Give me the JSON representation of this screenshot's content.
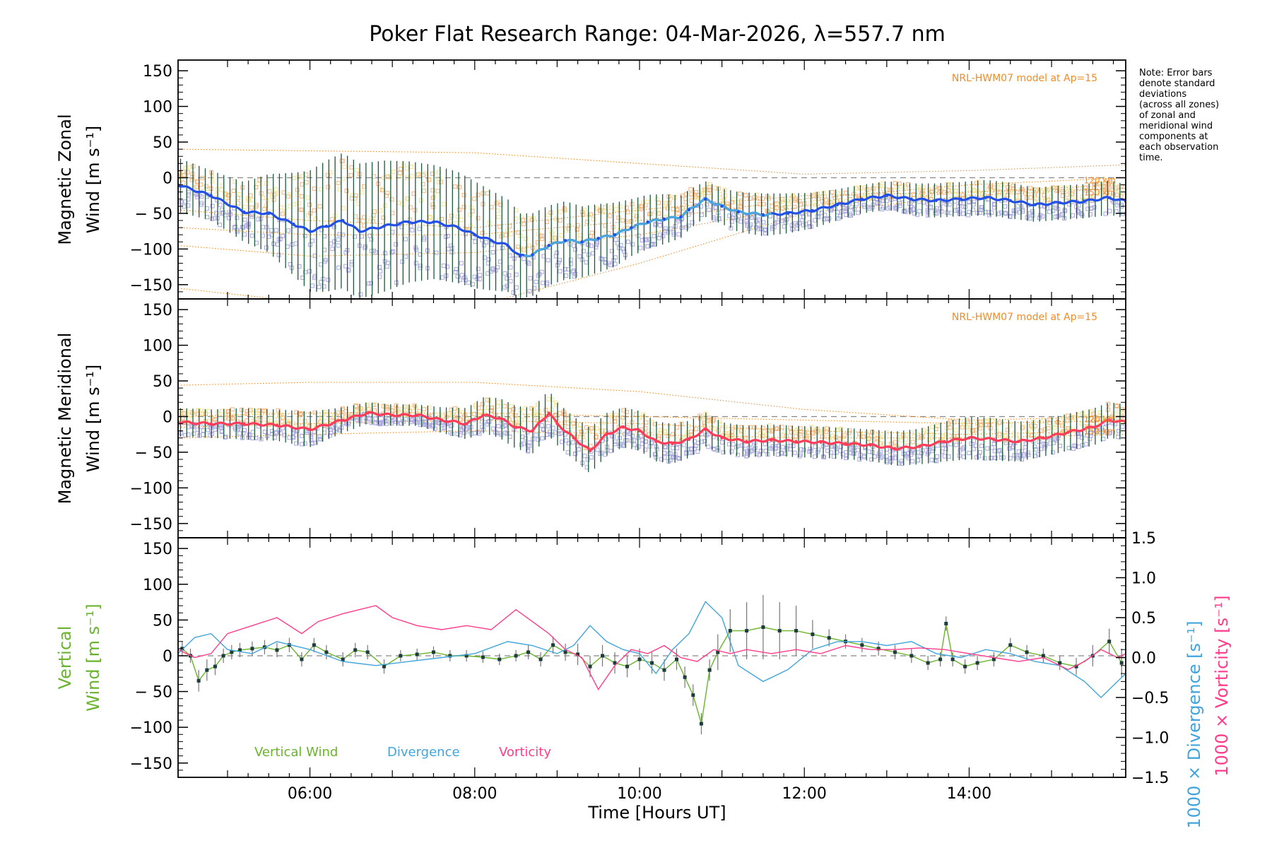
{
  "chart_data": {
    "type": "line",
    "title": "Poker Flat Research Range: 04-Mar-2026, λ=557.7 nm",
    "xlabel": "Time [Hours UT]",
    "xlim": [
      4.4,
      15.9
    ],
    "x_ticks": [
      6,
      8,
      10,
      12,
      14
    ],
    "x_tick_labels": [
      "06:00",
      "08:00",
      "10:00",
      "12:00",
      "14:00"
    ],
    "note": [
      "Note: Error bars",
      "denote standard",
      "deviations",
      "(across all zones)",
      "of zonal and",
      "meridional wind",
      "components at",
      "each observation",
      "time."
    ],
    "colors": {
      "zonal": "#2350e6",
      "zonal_light": "#4aa8dc",
      "meridional": "#ff3c5a",
      "vertical": "#6ab42c",
      "divergence": "#41a5dc",
      "vorticity": "#ff3c8c",
      "model": "#f08c28",
      "errbar": "#1d5a3c",
      "scatter_violet": "#aaa6e0",
      "scatter_yellow": "#f6e39a",
      "scatter_orange": "#f5b582"
    },
    "panels": [
      {
        "name": "zonal",
        "ylabel": [
          "Magnetic Zonal",
          "Wind [m s⁻¹]"
        ],
        "ylim": [
          -170,
          165
        ],
        "y_ticks": [
          150,
          100,
          50,
          0,
          -50,
          -100,
          -150
        ],
        "y_tick_labels": [
          "150",
          "100",
          "50",
          "0",
          "− 50",
          "−100",
          "−150"
        ],
        "model_label": "NRL-HWM07 model at Ap=15",
        "model_heights": [
          "120 km",
          "150 km"
        ],
        "mean_wind": {
          "name": "Mean zonal wind",
          "x": [
            4.4,
            4.8,
            5.2,
            5.5,
            5.8,
            6.0,
            6.2,
            6.4,
            6.6,
            6.9,
            7.2,
            7.5,
            7.8,
            8.0,
            8.2,
            8.4,
            8.55,
            8.7,
            8.9,
            9.1,
            9.3,
            9.5,
            9.7,
            9.9,
            10.1,
            10.3,
            10.5,
            10.6,
            10.8,
            11.0,
            11.2,
            11.5,
            11.8,
            12.1,
            12.4,
            12.7,
            13.0,
            13.3,
            13.6,
            13.9,
            14.2,
            14.5,
            14.8,
            15.1,
            15.4,
            15.7,
            15.9
          ],
          "y": [
            -10,
            -25,
            -48,
            -50,
            -65,
            -75,
            -68,
            -60,
            -75,
            -68,
            -62,
            -62,
            -70,
            -80,
            -88,
            -95,
            -110,
            -108,
            -95,
            -88,
            -90,
            -85,
            -80,
            -70,
            -62,
            -58,
            -55,
            -45,
            -30,
            -40,
            -48,
            -52,
            -50,
            -46,
            -38,
            -30,
            -25,
            -30,
            -32,
            -30,
            -28,
            -32,
            -38,
            -35,
            -33,
            -28,
            -33
          ]
        },
        "error_bar_half_width": [
          38,
          35,
          42,
          55,
          72,
          85,
          92,
          95,
          95,
          92,
          85,
          80,
          78,
          75,
          70,
          65,
          60,
          58,
          56,
          55,
          50,
          48,
          45,
          40,
          38,
          35,
          30,
          28,
          25,
          25,
          28,
          30,
          28,
          25,
          22,
          20,
          20,
          22,
          24,
          24,
          25,
          25,
          24,
          24,
          24,
          24,
          24
        ],
        "scatter": "zonal"
      },
      {
        "name": "meridional",
        "ylabel": [
          "Magnetic Meridional",
          "Wind [m s⁻¹]"
        ],
        "ylim": [
          -170,
          165
        ],
        "y_ticks": [
          150,
          100,
          50,
          0,
          -50,
          -100,
          -150
        ],
        "y_tick_labels": [
          "150",
          "100",
          "50",
          "0",
          "− 50",
          "−100",
          "−150"
        ],
        "model_label": "NRL-HWM07 model at Ap=15",
        "model_heights": [
          "120 km",
          "150 km"
        ],
        "mean_wind": {
          "name": "Mean meridional wind",
          "x": [
            4.4,
            4.8,
            5.2,
            5.6,
            6.0,
            6.4,
            6.7,
            7.0,
            7.3,
            7.6,
            7.9,
            8.1,
            8.3,
            8.5,
            8.7,
            8.9,
            9.0,
            9.2,
            9.4,
            9.6,
            9.8,
            10.0,
            10.2,
            10.4,
            10.6,
            10.8,
            11.0,
            11.3,
            11.6,
            11.9,
            12.2,
            12.5,
            12.8,
            13.1,
            13.4,
            13.7,
            14.0,
            14.3,
            14.6,
            14.9,
            15.2,
            15.5,
            15.7,
            15.9
          ],
          "y": [
            -8,
            -10,
            -10,
            -12,
            -18,
            -5,
            5,
            2,
            2,
            -5,
            -10,
            2,
            -2,
            -15,
            -20,
            5,
            -10,
            -30,
            -48,
            -25,
            -15,
            -20,
            -35,
            -38,
            -32,
            -18,
            -30,
            -35,
            -33,
            -35,
            -36,
            -38,
            -40,
            -45,
            -42,
            -35,
            -30,
            -32,
            -35,
            -30,
            -22,
            -15,
            -5,
            -8
          ]
        },
        "error_bar_half_width": [
          20,
          20,
          22,
          22,
          25,
          18,
          15,
          15,
          15,
          18,
          22,
          25,
          28,
          30,
          32,
          32,
          30,
          30,
          32,
          30,
          28,
          28,
          28,
          28,
          26,
          24,
          22,
          22,
          22,
          22,
          22,
          22,
          22,
          24,
          25,
          28,
          30,
          30,
          28,
          26,
          26,
          26,
          25,
          25
        ],
        "scatter": "meridional"
      },
      {
        "name": "vertical",
        "ylabel_left": [
          "Vertical",
          "Wind [m s⁻¹]"
        ],
        "ylabel_right_div": "1000 × Divergence [s⁻¹]",
        "ylabel_right_vort": "1000 × Vorticity [s⁻¹]",
        "ylim": [
          -170,
          165
        ],
        "y_ticks": [
          150,
          100,
          50,
          0,
          -50,
          -100,
          -150
        ],
        "y_tick_labels": [
          "150",
          "100",
          "50",
          "0",
          "− 50",
          "−100",
          "−150"
        ],
        "ylim_right": [
          -1.5,
          1.5
        ],
        "y_ticks_right": [
          1.5,
          1.0,
          0.5,
          0.0,
          -0.5,
          -1.0,
          -1.5
        ],
        "y_tick_labels_right": [
          "1.5",
          "1.0",
          "0.5",
          "0.0",
          "−0.5",
          "−1.0",
          "−1.5"
        ],
        "legend": [
          "Vertical Wind",
          "Divergence",
          "Vorticity"
        ],
        "series": [
          {
            "name": "Vertical Wind",
            "x": [
              4.45,
              4.55,
              4.65,
              4.75,
              4.85,
              4.95,
              5.05,
              5.15,
              5.3,
              5.45,
              5.6,
              5.75,
              5.9,
              6.05,
              6.2,
              6.4,
              6.55,
              6.7,
              6.9,
              7.1,
              7.3,
              7.5,
              7.7,
              7.9,
              8.1,
              8.3,
              8.5,
              8.65,
              8.8,
              8.95,
              9.1,
              9.25,
              9.4,
              9.55,
              9.7,
              9.85,
              10.0,
              10.15,
              10.3,
              10.45,
              10.55,
              10.65,
              10.75,
              10.85,
              10.95,
              11.1,
              11.3,
              11.5,
              11.7,
              11.9,
              12.1,
              12.3,
              12.5,
              12.7,
              12.9,
              13.1,
              13.3,
              13.5,
              13.65,
              13.72,
              13.8,
              13.95,
              14.1,
              14.3,
              14.5,
              14.7,
              14.9,
              15.1,
              15.3,
              15.5,
              15.7,
              15.85
            ],
            "y": [
              10,
              0,
              -35,
              -20,
              -15,
              0,
              5,
              8,
              10,
              12,
              8,
              15,
              -5,
              15,
              5,
              -5,
              8,
              5,
              -15,
              0,
              2,
              5,
              0,
              0,
              -2,
              -5,
              0,
              5,
              -5,
              15,
              5,
              2,
              -15,
              0,
              -10,
              -15,
              -5,
              -10,
              -20,
              -5,
              -30,
              -55,
              -95,
              -20,
              5,
              35,
              35,
              40,
              35,
              35,
              30,
              25,
              20,
              15,
              10,
              5,
              0,
              -10,
              -5,
              45,
              -5,
              -15,
              -10,
              -5,
              15,
              5,
              0,
              -10,
              -15,
              0,
              20,
              -10
            ],
            "errbar": [
              10,
              10,
              15,
              15,
              12,
              10,
              10,
              10,
              10,
              10,
              10,
              10,
              10,
              10,
              10,
              10,
              10,
              10,
              10,
              8,
              8,
              8,
              8,
              8,
              8,
              8,
              8,
              10,
              10,
              12,
              12,
              15,
              15,
              15,
              15,
              15,
              15,
              15,
              15,
              15,
              15,
              15,
              15,
              15,
              25,
              30,
              40,
              45,
              40,
              35,
              20,
              12,
              10,
              10,
              10,
              10,
              10,
              10,
              10,
              10,
              10,
              10,
              10,
              10,
              10,
              10,
              10,
              10,
              12,
              15,
              18,
              20
            ]
          },
          {
            "name": "Divergence",
            "axis": "right",
            "x": [
              4.4,
              4.6,
              4.8,
              5.0,
              5.3,
              5.6,
              6.0,
              6.4,
              6.8,
              7.2,
              7.6,
              8.0,
              8.4,
              8.7,
              9.0,
              9.2,
              9.4,
              9.6,
              9.8,
              10.0,
              10.2,
              10.4,
              10.6,
              10.8,
              11.0,
              11.2,
              11.5,
              11.8,
              12.1,
              12.4,
              12.7,
              13.0,
              13.3,
              13.6,
              13.9,
              14.2,
              14.5,
              14.8,
              15.1,
              15.4,
              15.6,
              15.8,
              15.9
            ],
            "y": [
              0.05,
              0.25,
              0.3,
              0.1,
              0.05,
              0.2,
              0.1,
              -0.05,
              -0.1,
              -0.05,
              0.0,
              0.05,
              0.2,
              0.15,
              0.05,
              0.15,
              0.4,
              0.2,
              0.1,
              0.05,
              -0.2,
              0.1,
              0.3,
              0.7,
              0.5,
              -0.1,
              -0.3,
              -0.15,
              0.1,
              0.2,
              0.2,
              0.15,
              0.2,
              0.05,
              0.0,
              0.1,
              0.05,
              -0.05,
              -0.1,
              -0.3,
              -0.5,
              -0.3,
              -0.2
            ]
          },
          {
            "name": "Vorticity",
            "axis": "right",
            "x": [
              4.4,
              4.6,
              4.8,
              5.0,
              5.3,
              5.6,
              5.9,
              6.1,
              6.4,
              6.6,
              6.8,
              7.0,
              7.3,
              7.6,
              7.9,
              8.2,
              8.5,
              8.7,
              8.9,
              9.1,
              9.3,
              9.5,
              9.7,
              9.9,
              10.1,
              10.3,
              10.5,
              10.7,
              10.9,
              11.1,
              11.3,
              11.6,
              11.9,
              12.2,
              12.5,
              12.8,
              13.1,
              13.4,
              13.7,
              14.0,
              14.3,
              14.6,
              14.9,
              15.2,
              15.4,
              15.6,
              15.8,
              15.9
            ],
            "y": [
              0.1,
              0.0,
              0.05,
              0.3,
              0.4,
              0.5,
              0.3,
              0.45,
              0.55,
              0.6,
              0.65,
              0.5,
              0.4,
              0.35,
              0.4,
              0.35,
              0.6,
              0.45,
              0.3,
              0.1,
              0.0,
              -0.4,
              -0.1,
              0.1,
              0.05,
              0.15,
              0.0,
              -0.05,
              0.1,
              0.05,
              0.1,
              0.05,
              0.1,
              0.05,
              0.15,
              0.1,
              0.1,
              0.12,
              0.1,
              0.05,
              0.0,
              -0.05,
              0.0,
              -0.15,
              -0.05,
              0.1,
              0.0,
              0.05
            ]
          }
        ]
      }
    ]
  }
}
